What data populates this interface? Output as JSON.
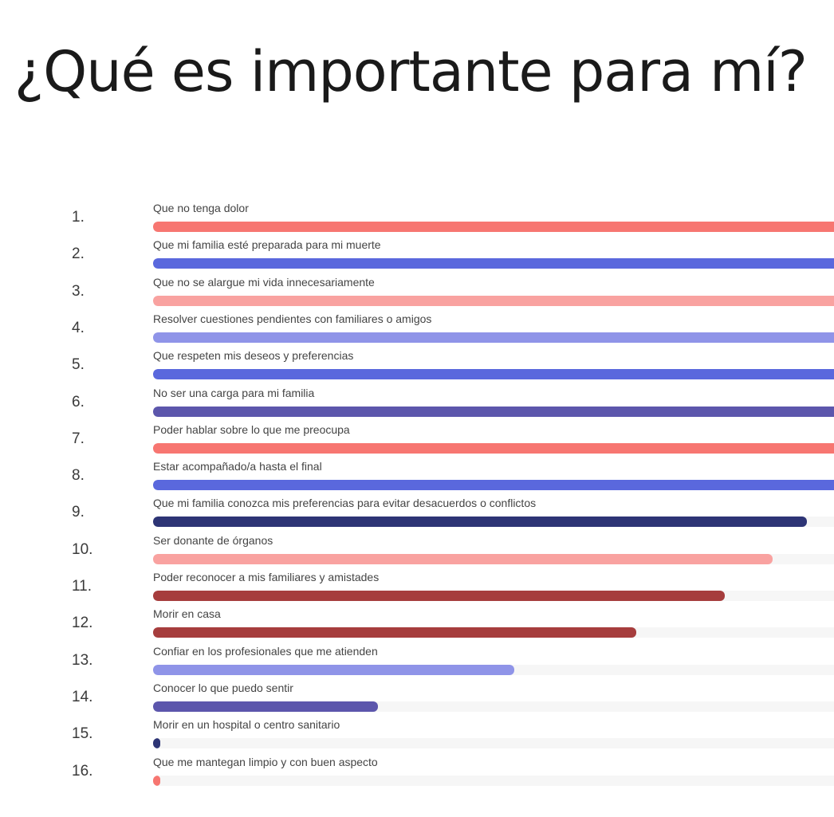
{
  "title": "¿Qué es importante para mí?",
  "chart_data": {
    "type": "bar",
    "orientation": "horizontal",
    "xlim": [
      0,
      100
    ],
    "rows": [
      {
        "rank": "1.",
        "label": "Que no tenga dolor",
        "value": 100,
        "color": "#f77671"
      },
      {
        "rank": "2.",
        "label": "Que mi familia esté preparada para mi muerte",
        "value": 100,
        "color": "#5a68dd"
      },
      {
        "rank": "3.",
        "label": "Que no se alargue mi vida innecesariamente",
        "value": 100,
        "color": "#f9a2a0"
      },
      {
        "rank": "4.",
        "label": "Resolver cuestiones pendientes con familiares o amigos",
        "value": 100,
        "color": "#8f94e8"
      },
      {
        "rank": "5.",
        "label": "Que respeten mis deseos y preferencias",
        "value": 100,
        "color": "#5a68dd"
      },
      {
        "rank": "6.",
        "label": "No ser una carga para mi familia",
        "value": 100,
        "color": "#5c56ac"
      },
      {
        "rank": "7.",
        "label": "Poder hablar sobre lo que me preocupa",
        "value": 100,
        "color": "#f77671"
      },
      {
        "rank": "8.",
        "label": "Estar acompañado/a hasta el final",
        "value": 100,
        "color": "#5a68dd"
      },
      {
        "rank": "9.",
        "label": "Que mi familia conozca mis preferencias para evitar desacuerdos o conflictos",
        "value": 96,
        "color": "#2d3475"
      },
      {
        "rank": "10.",
        "label": "Ser donante de órganos",
        "value": 91,
        "color": "#f9a2a0"
      },
      {
        "rank": "11.",
        "label": "Poder reconocer a mis familiares y amistades",
        "value": 84,
        "color": "#a63d3d"
      },
      {
        "rank": "12.",
        "label": "Morir en casa",
        "value": 71,
        "color": "#a63d3d"
      },
      {
        "rank": "13.",
        "label": "Confiar en los profesionales que me atienden",
        "value": 53,
        "color": "#8f94e8"
      },
      {
        "rank": "14.",
        "label": "Conocer lo que puedo sentir",
        "value": 33,
        "color": "#5c56ac"
      },
      {
        "rank": "15.",
        "label": "Morir en un hospital o centro sanitario",
        "value": 1,
        "color": "#2d3475"
      },
      {
        "rank": "16.",
        "label": "Que me mantegan limpio y con buen aspecto",
        "value": 1,
        "color": "#f77671"
      }
    ]
  }
}
